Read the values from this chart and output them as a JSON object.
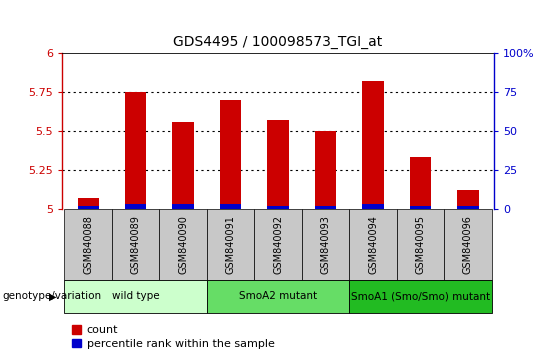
{
  "title": "GDS4495 / 100098573_TGI_at",
  "categories": [
    "GSM840088",
    "GSM840089",
    "GSM840090",
    "GSM840091",
    "GSM840092",
    "GSM840093",
    "GSM840094",
    "GSM840095",
    "GSM840096"
  ],
  "red_values": [
    5.07,
    5.75,
    5.56,
    5.7,
    5.57,
    5.5,
    5.82,
    5.33,
    5.12
  ],
  "blue_values_pct": [
    2,
    3,
    3,
    3,
    2,
    2,
    3,
    2,
    2
  ],
  "ylim": [
    5.0,
    6.0
  ],
  "y2lim": [
    0,
    100
  ],
  "yticks": [
    5.0,
    5.25,
    5.5,
    5.75,
    6.0
  ],
  "y2ticks": [
    0,
    25,
    50,
    75,
    100
  ],
  "ytick_labels": [
    "5",
    "5.25",
    "5.5",
    "5.75",
    "6"
  ],
  "y2tick_labels": [
    "0",
    "25",
    "50",
    "75",
    "100%"
  ],
  "left_color": "#cc0000",
  "right_color": "#0000cc",
  "bar_color_red": "#cc0000",
  "bar_color_blue": "#0000cc",
  "groups": [
    {
      "label": "wild type",
      "start": 0,
      "end": 3,
      "color": "#ccffcc"
    },
    {
      "label": "SmoA2 mutant",
      "start": 3,
      "end": 6,
      "color": "#66dd66"
    },
    {
      "label": "SmoA1 (Smo/Smo) mutant",
      "start": 6,
      "end": 9,
      "color": "#22bb22"
    }
  ],
  "group_label_prefix": "genotype/variation",
  "legend_red": "count",
  "legend_blue": "percentile rank within the sample",
  "bar_width": 0.45,
  "plot_bg": "#ffffff",
  "tick_bg": "#c8c8c8",
  "title_fontsize": 10,
  "axis_fontsize": 8,
  "tick_label_fontsize": 7,
  "group_fontsize": 7.5,
  "legend_fontsize": 8
}
